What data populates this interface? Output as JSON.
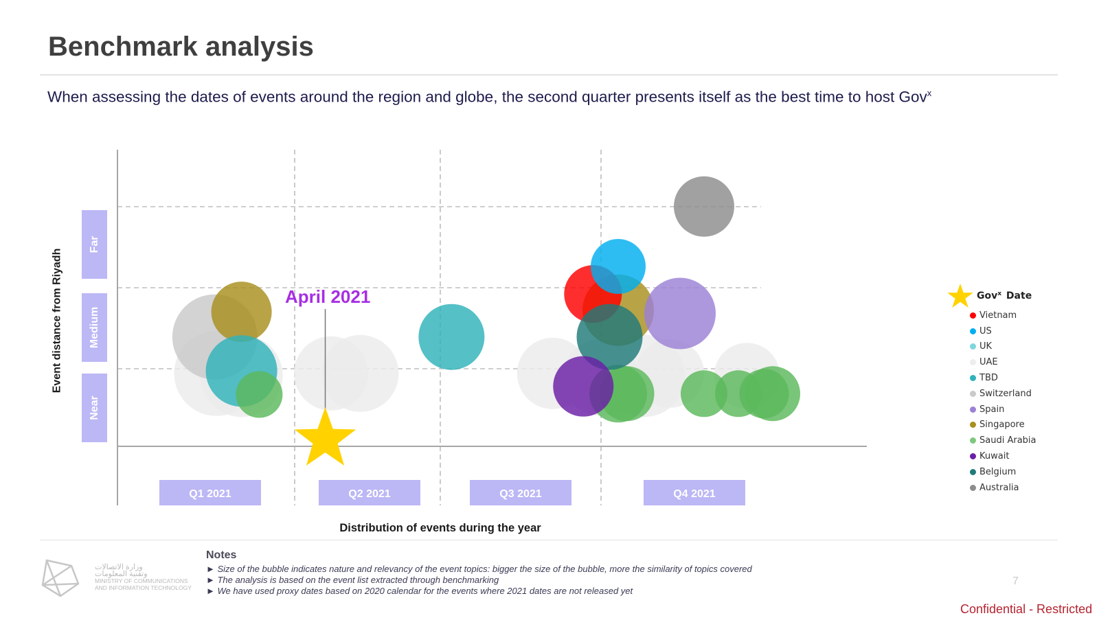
{
  "header": {
    "title": "Benchmark analysis",
    "subtitle": "When assessing the dates of events around the region and globe, the second quarter presents itself as the best time to host Gov",
    "subtitle_sup": "x"
  },
  "chart_data": {
    "type": "scatter",
    "xlabel": "Distribution of events during the year",
    "ylabel": "Event distance from Riyadh",
    "x_categories": [
      "Q1 2021",
      "Q2 2021",
      "Q3 2021",
      "Q4 2021"
    ],
    "y_categories": [
      "Near",
      "Medium",
      "Far"
    ],
    "annotation": "April 2021",
    "series": [
      {
        "name": "UAE",
        "color": "#ececec",
        "points": [
          {
            "x": 0.56,
            "y": 0.9,
            "size": 62
          },
          {
            "x": 0.7,
            "y": 0.87,
            "size": 60
          },
          {
            "x": 1.25,
            "y": 0.9,
            "size": 54
          },
          {
            "x": 1.45,
            "y": 0.9,
            "size": 56
          },
          {
            "x": 2.7,
            "y": 0.9,
            "size": 52
          },
          {
            "x": 3.0,
            "y": 0.85,
            "size": 56
          },
          {
            "x": 3.25,
            "y": 0.87,
            "size": 60
          },
          {
            "x": 3.4,
            "y": 0.9,
            "size": 50
          },
          {
            "x": 3.85,
            "y": 0.87,
            "size": 48
          }
        ]
      },
      {
        "name": "Switzerland",
        "color": "#c9c9c9",
        "points": [
          {
            "x": 0.55,
            "y": 1.35,
            "size": 62
          }
        ]
      },
      {
        "name": "Singapore",
        "color": "#a88f1f",
        "points": [
          {
            "x": 0.7,
            "y": 1.66,
            "size": 44
          },
          {
            "x": 3.1,
            "y": 1.68,
            "size": 52
          }
        ]
      },
      {
        "name": "TBD",
        "color": "#2fb2ba",
        "points": [
          {
            "x": 0.7,
            "y": 0.93,
            "size": 52
          },
          {
            "x": 2.07,
            "y": 1.35,
            "size": 48
          }
        ]
      },
      {
        "name": "Saudi Arabia",
        "color": "#5cb85c",
        "points": [
          {
            "x": 0.8,
            "y": 0.64,
            "size": 34
          },
          {
            "x": 3.1,
            "y": 0.65,
            "size": 42
          },
          {
            "x": 3.15,
            "y": 0.65,
            "size": 40
          },
          {
            "x": 3.6,
            "y": 0.65,
            "size": 34
          },
          {
            "x": 3.8,
            "y": 0.65,
            "size": 34
          },
          {
            "x": 3.95,
            "y": 0.65,
            "size": 36
          },
          {
            "x": 4.0,
            "y": 0.65,
            "size": 40
          }
        ]
      },
      {
        "name": "Vietnam",
        "color": "#ff0000",
        "points": [
          {
            "x": 2.95,
            "y": 1.88,
            "size": 42
          }
        ]
      },
      {
        "name": "US",
        "color": "#00aeef",
        "points": [
          {
            "x": 3.1,
            "y": 2.22,
            "size": 40
          }
        ]
      },
      {
        "name": "Spain",
        "color": "#9b80d6",
        "points": [
          {
            "x": 3.46,
            "y": 1.64,
            "size": 52
          }
        ]
      },
      {
        "name": "Belgium",
        "color": "#217a7a",
        "points": [
          {
            "x": 3.05,
            "y": 1.35,
            "size": 48
          }
        ]
      },
      {
        "name": "Kuwait",
        "color": "#6a1fa6",
        "points": [
          {
            "x": 2.89,
            "y": 0.74,
            "size": 44
          }
        ]
      },
      {
        "name": "Australia",
        "color": "#8c8c8c",
        "points": [
          {
            "x": 3.6,
            "y": 2.96,
            "size": 44
          }
        ]
      }
    ],
    "gov_date": {
      "x": 1.21,
      "y": 0.0
    }
  },
  "legend": {
    "star_label": "Gov",
    "star_label_sup": "x",
    "star_label_rest": " Date",
    "items": [
      {
        "label": "Vietnam",
        "color": "#ff0000"
      },
      {
        "label": "US",
        "color": "#00aeef"
      },
      {
        "label": "UK",
        "color": "#7fd6dd"
      },
      {
        "label": "UAE",
        "color": "#ededed"
      },
      {
        "label": "TBD",
        "color": "#2fb2ba"
      },
      {
        "label": "Switzerland",
        "color": "#c9c9c9"
      },
      {
        "label": "Spain",
        "color": "#9b80d6"
      },
      {
        "label": "Singapore",
        "color": "#a88f1f"
      },
      {
        "label": "Saudi Arabia",
        "color": "#7ec87e"
      },
      {
        "label": "Kuwait",
        "color": "#6a1fa6"
      },
      {
        "label": "Belgium",
        "color": "#217a7a"
      },
      {
        "label": "Australia",
        "color": "#8c8c8c"
      }
    ]
  },
  "notes": {
    "title": "Notes",
    "items": [
      "► Size of the bubble indicates nature and relevancy of the event topics: bigger the size of the bubble, more the similarity of topics covered",
      "► The analysis is based on the event list extracted through benchmarking",
      "► We have used proxy dates based on 2020 calendar for the events where 2021 dates are not released yet"
    ]
  },
  "footer": {
    "logo_ar_1": "وزارة الاتصالات",
    "logo_ar_2": "وتقنية المعلومات",
    "logo_en_1": "MINISTRY OF COMMUNICATIONS",
    "logo_en_2": "AND INFORMATION TECHNOLOGY",
    "page_number": "7",
    "confidential": "Confidential - Restricted"
  }
}
